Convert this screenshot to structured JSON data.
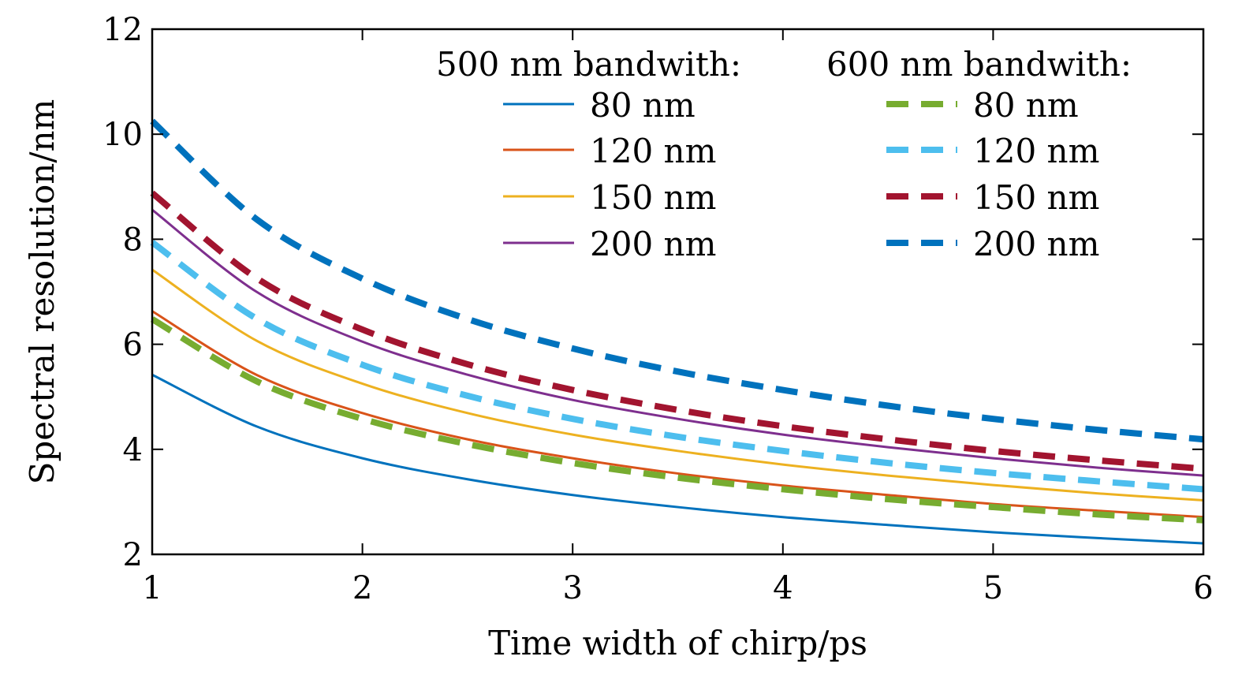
{
  "chart_data": {
    "type": "line",
    "xlabel": "Time width of chirp/ps",
    "ylabel": "Spectral resolution/nm",
    "xlim": [
      1,
      6
    ],
    "ylim": [
      2,
      12
    ],
    "xticks": [
      "1",
      "2",
      "3",
      "4",
      "5",
      "6"
    ],
    "yticks": [
      "2",
      "4",
      "6",
      "8",
      "10",
      "12"
    ],
    "grid": false,
    "legend": {
      "placement": "top-right",
      "groups": [
        {
          "title": "500 nm bandwith:",
          "style": "solid"
        },
        {
          "title": "600 nm bandwith:",
          "style": "dashed"
        }
      ]
    },
    "series": [
      {
        "name": "80 nm",
        "group": "500 nm bandwith:",
        "color": "#0072BD",
        "dashed": false,
        "x": [
          1,
          1.5,
          2,
          2.5,
          3,
          3.5,
          4,
          4.5,
          5,
          5.5,
          6
        ],
        "y": [
          5.42,
          4.43,
          3.83,
          3.43,
          3.13,
          2.9,
          2.71,
          2.56,
          2.42,
          2.31,
          2.21
        ]
      },
      {
        "name": "120 nm",
        "group": "500 nm bandwith:",
        "color": "#D95319",
        "dashed": false,
        "x": [
          1,
          1.5,
          2,
          2.5,
          3,
          3.5,
          4,
          4.5,
          5,
          5.5,
          6
        ],
        "y": [
          6.63,
          5.41,
          4.69,
          4.19,
          3.83,
          3.54,
          3.31,
          3.13,
          2.96,
          2.83,
          2.71
        ]
      },
      {
        "name": "150 nm",
        "group": "500 nm bandwith:",
        "color": "#EDB120",
        "dashed": false,
        "x": [
          1,
          1.5,
          2,
          2.5,
          3,
          3.5,
          4,
          4.5,
          5,
          5.5,
          6
        ],
        "y": [
          7.42,
          6.06,
          5.25,
          4.69,
          4.28,
          3.97,
          3.71,
          3.5,
          3.32,
          3.16,
          3.03
        ]
      },
      {
        "name": "200 nm",
        "group": "500 nm bandwith:",
        "color": "#7E2F8E",
        "dashed": false,
        "x": [
          1,
          1.5,
          2,
          2.5,
          3,
          3.5,
          4,
          4.5,
          5,
          5.5,
          6
        ],
        "y": [
          8.56,
          6.99,
          6.05,
          5.42,
          4.94,
          4.58,
          4.28,
          4.04,
          3.83,
          3.65,
          3.5
        ]
      },
      {
        "name": "80 nm",
        "group": "600 nm bandwith:",
        "color": "#77AC30",
        "dashed": true,
        "x": [
          1,
          1.5,
          2,
          2.5,
          3,
          3.5,
          4,
          4.5,
          5,
          5.5,
          6
        ],
        "y": [
          6.48,
          5.29,
          4.58,
          4.1,
          3.74,
          3.46,
          3.24,
          3.05,
          2.9,
          2.76,
          2.65
        ]
      },
      {
        "name": "120 nm",
        "group": "600 nm bandwith:",
        "color": "#4DBEEE",
        "dashed": true,
        "x": [
          1,
          1.5,
          2,
          2.5,
          3,
          3.5,
          4,
          4.5,
          5,
          5.5,
          6
        ],
        "y": [
          7.94,
          6.48,
          5.61,
          5.02,
          4.58,
          4.24,
          3.97,
          3.74,
          3.55,
          3.39,
          3.24
        ]
      },
      {
        "name": "150 nm",
        "group": "600 nm bandwith:",
        "color": "#A2142F",
        "dashed": true,
        "x": [
          1,
          1.5,
          2,
          2.5,
          3,
          3.5,
          4,
          4.5,
          5,
          5.5,
          6
        ],
        "y": [
          8.88,
          7.25,
          6.28,
          5.62,
          5.13,
          4.75,
          4.44,
          4.19,
          3.97,
          3.79,
          3.63
        ]
      },
      {
        "name": "200 nm",
        "group": "600 nm bandwith:",
        "color": "#0072BD",
        "dashed": true,
        "x": [
          1,
          1.5,
          2,
          2.5,
          3,
          3.5,
          4,
          4.5,
          5,
          5.5,
          6
        ],
        "y": [
          10.25,
          8.37,
          7.25,
          6.48,
          5.92,
          5.48,
          5.13,
          4.83,
          4.58,
          4.37,
          4.19
        ]
      }
    ]
  }
}
